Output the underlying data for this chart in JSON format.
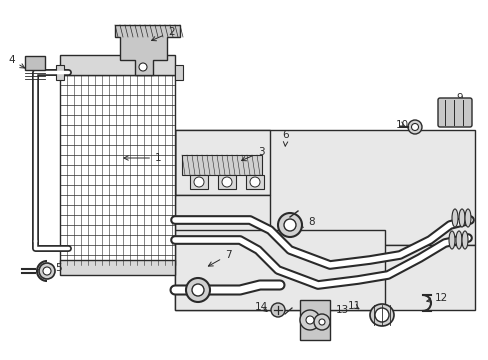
{
  "bg": "#ffffff",
  "lc": "#2a2a2a",
  "shade": "#e0e0e0",
  "figsize": [
    4.89,
    3.6
  ],
  "dpi": 100,
  "xlim": [
    0,
    489
  ],
  "ylim": [
    0,
    360
  ]
}
